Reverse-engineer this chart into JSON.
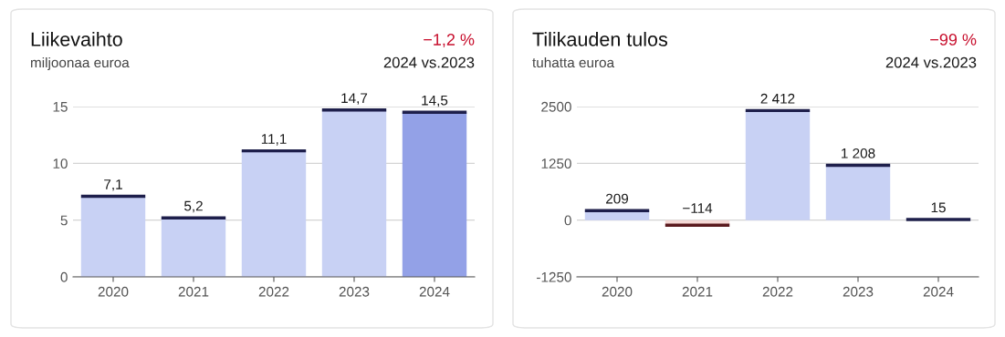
{
  "chart_data": [
    {
      "type": "bar",
      "title": "Liikevaihto",
      "subtitle": "miljoonaa euroa",
      "annotations": [
        "−1,2 %",
        "2024 vs.2023"
      ],
      "categories": [
        "2020",
        "2021",
        "2022",
        "2023",
        "2024"
      ],
      "values": [
        7.1,
        5.2,
        11.1,
        14.7,
        14.5
      ],
      "colors": [
        "#c8d1f4",
        "#c8d1f4",
        "#c8d1f4",
        "#c8d1f4",
        "#93a1e7"
      ],
      "value_labels": [
        "7,1",
        "5,2",
        "11,1",
        "14,7",
        "14,5"
      ],
      "ylim": [
        0,
        15
      ],
      "yticks": [
        0,
        5,
        10,
        15
      ],
      "grid": "y"
    },
    {
      "type": "bar",
      "title": "Tilikauden tulos",
      "subtitle": "tuhatta euroa",
      "annotations": [
        "−99 %",
        "2024 vs.2023"
      ],
      "categories": [
        "2020",
        "2021",
        "2022",
        "2023",
        "2024"
      ],
      "values": [
        209,
        -114,
        2412,
        1208,
        15
      ],
      "colors": [
        "#c8d1f4",
        "#f5d9d6",
        "#c8d1f4",
        "#c8d1f4",
        "#c8d1f4"
      ],
      "value_labels": [
        "209",
        "−114",
        "2 412",
        "1 208",
        "15"
      ],
      "ylim": [
        -1250,
        2500
      ],
      "yticks": [
        -1250,
        0,
        1250,
        2500
      ],
      "grid": "y"
    }
  ]
}
